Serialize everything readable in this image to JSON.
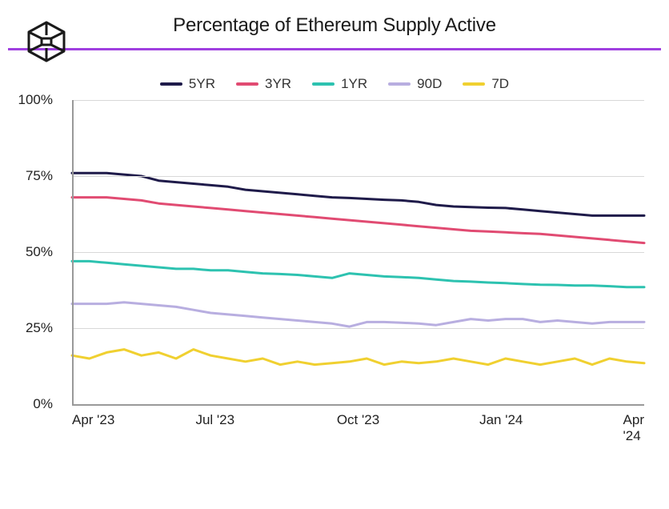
{
  "title": "Percentage of Ethereum Supply Active",
  "accent_color": "#a040e0",
  "chart": {
    "type": "line",
    "background_color": "#ffffff",
    "grid_color": "#d8d8d8",
    "axis_color": "#999999",
    "text_color": "#222222",
    "title_fontsize": 24,
    "label_fontsize": 17,
    "line_width": 3,
    "ylim": [
      0,
      100
    ],
    "ytick_step": 25,
    "y_suffix": "%",
    "y_ticks": [
      0,
      25,
      50,
      75,
      100
    ],
    "x_labels": [
      "Apr '23",
      "Jul '23",
      "Oct '23",
      "Jan '24",
      "Apr '24"
    ],
    "x_positions": [
      0,
      0.25,
      0.5,
      0.75,
      1.0
    ],
    "series": [
      {
        "name": "5YR",
        "color": "#1f1b4a",
        "values": [
          76,
          76,
          76,
          75.5,
          75,
          73.5,
          73,
          72.5,
          72,
          71.5,
          70.5,
          70,
          69.5,
          69,
          68.5,
          68,
          67.8,
          67.5,
          67.2,
          67,
          66.5,
          65.5,
          65,
          64.8,
          64.6,
          64.5,
          64,
          63.5,
          63,
          62.5,
          62,
          62,
          62,
          62
        ]
      },
      {
        "name": "3YR",
        "color": "#e14b72",
        "values": [
          68,
          68,
          68,
          67.5,
          67,
          66,
          65.5,
          65,
          64.5,
          64,
          63.5,
          63,
          62.5,
          62,
          61.5,
          61,
          60.5,
          60,
          59.5,
          59,
          58.5,
          58,
          57.5,
          57,
          56.8,
          56.5,
          56.2,
          56,
          55.5,
          55,
          54.5,
          54,
          53.5,
          53
        ]
      },
      {
        "name": "1YR",
        "color": "#2dc2b0",
        "values": [
          47,
          47,
          46.5,
          46,
          45.5,
          45,
          44.5,
          44.5,
          44,
          44,
          43.5,
          43,
          42.8,
          42.5,
          42,
          41.5,
          43,
          42.5,
          42,
          41.8,
          41.5,
          41,
          40.5,
          40.3,
          40,
          39.8,
          39.5,
          39.3,
          39.2,
          39,
          39,
          38.8,
          38.5,
          38.5
        ]
      },
      {
        "name": "90D",
        "color": "#b8aee0",
        "values": [
          33,
          33,
          33,
          33.5,
          33,
          32.5,
          32,
          31,
          30,
          29.5,
          29,
          28.5,
          28,
          27.5,
          27,
          26.5,
          25.5,
          27,
          27,
          26.8,
          26.5,
          26,
          27,
          28,
          27.5,
          28,
          28,
          27,
          27.5,
          27,
          26.5,
          27,
          27,
          27
        ]
      },
      {
        "name": "7D",
        "color": "#f0d030",
        "values": [
          16,
          15,
          17,
          18,
          16,
          17,
          15,
          18,
          16,
          15,
          14,
          15,
          13,
          14,
          13,
          13.5,
          14,
          15,
          13,
          14,
          13.5,
          14,
          15,
          14,
          13,
          15,
          14,
          13,
          14,
          15,
          13,
          15,
          14,
          13.5
        ]
      }
    ]
  }
}
